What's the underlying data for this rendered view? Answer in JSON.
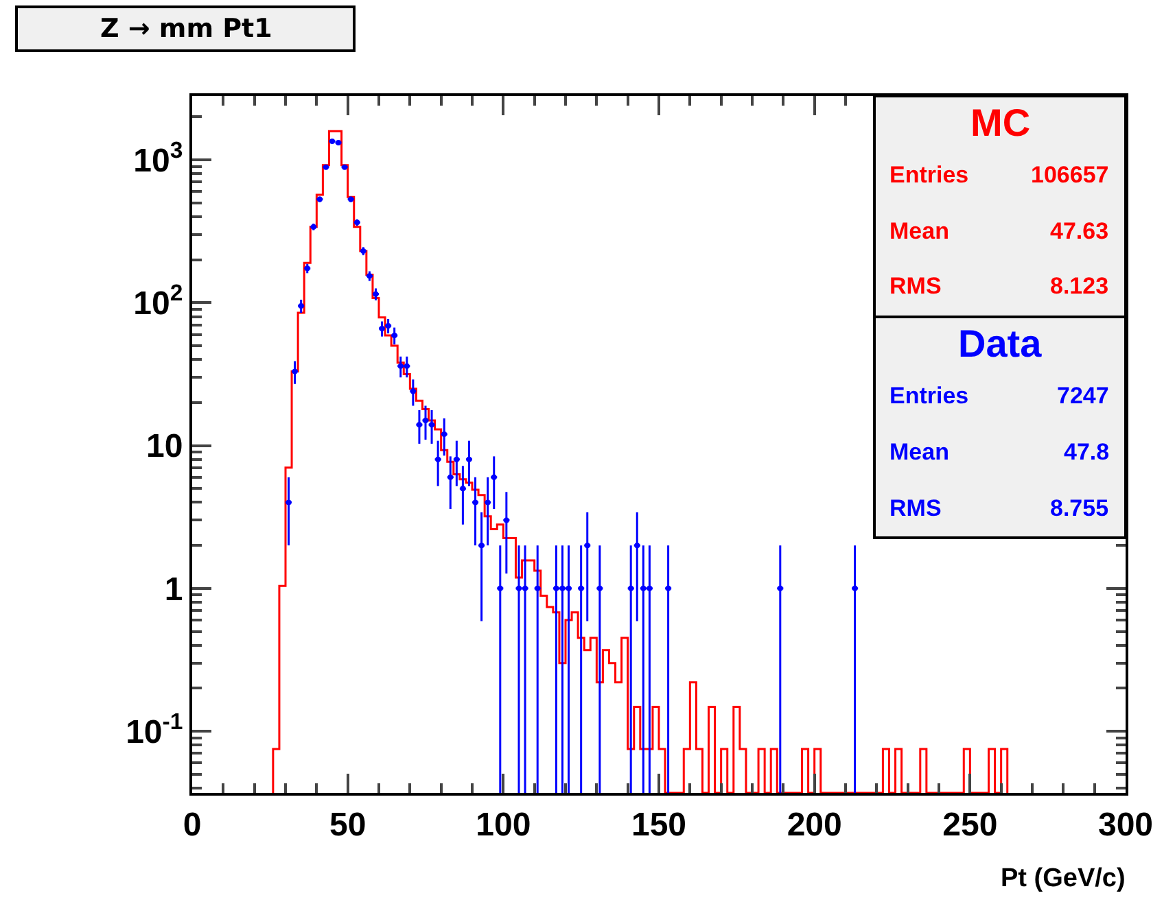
{
  "chart_data": {
    "type": "histogram",
    "title": "Z → mm Pt1",
    "xlabel": "Pt (GeV/c)",
    "xlim": [
      0,
      300
    ],
    "xticks": [
      0,
      50,
      100,
      150,
      200,
      250,
      300
    ],
    "ylim": [
      0.037,
      2800
    ],
    "log": true,
    "yticks": [
      {
        "value": 0.1,
        "label": "10$^{-1}$"
      },
      1,
      10,
      {
        "value": 100,
        "label": "10$^{2}$"
      },
      {
        "value": 1000,
        "label": "10$^{3}$"
      }
    ],
    "series": [
      {
        "name": "MC",
        "color": "#ff0000",
        "bins": [
          26,
          28,
          30,
          32,
          34,
          36,
          38,
          40,
          42,
          44,
          46,
          48,
          50,
          52,
          54,
          56,
          58,
          60,
          62,
          64,
          66,
          68,
          70,
          72,
          74,
          76,
          78,
          80,
          82,
          84,
          86,
          88,
          90,
          92,
          94,
          96,
          98,
          100,
          102,
          104,
          106,
          108,
          110,
          112,
          114,
          116,
          118,
          120,
          122,
          124,
          126,
          128,
          130,
          132,
          134,
          136,
          138,
          140,
          142,
          144,
          146,
          148,
          150,
          152,
          154,
          156,
          158,
          160,
          162,
          164,
          166,
          168,
          170,
          172,
          174,
          176,
          178,
          180,
          182,
          184,
          186,
          188,
          190,
          192,
          194,
          196,
          198,
          200,
          202,
          204,
          206,
          208,
          210,
          212,
          214,
          216,
          218,
          220,
          222,
          224,
          226,
          228,
          230,
          232,
          234,
          236,
          238,
          240,
          242,
          244,
          246,
          248,
          250,
          252,
          254,
          256,
          258,
          260,
          262
        ],
        "values": [
          0.075,
          1.04,
          7.0,
          33,
          85,
          190,
          340,
          570,
          920,
          1590,
          1590,
          920,
          550,
          340,
          230,
          157,
          108,
          79,
          59,
          50,
          38,
          31.6,
          25,
          20.6,
          18,
          15,
          13,
          9.3,
          7.7,
          6.3,
          5.8,
          5.5,
          4.9,
          4.5,
          3.2,
          2.6,
          2.8,
          2.25,
          2.25,
          1.19,
          1.57,
          1.57,
          1.33,
          0.89,
          0.74,
          0.68,
          0.3,
          0.6,
          0.68,
          0.45,
          0.37,
          0.45,
          0.22,
          0.37,
          0.3,
          0.22,
          0.45,
          0.075,
          0.148,
          0.075,
          0.075,
          0.148,
          0.075,
          null,
          null,
          null,
          0.075,
          0.22,
          0.075,
          null,
          0.148,
          null,
          0.075,
          null,
          0.148,
          0.075,
          null,
          null,
          0.075,
          null,
          0.075,
          null,
          null,
          null,
          null,
          0.075,
          null,
          0.075,
          null,
          null,
          null,
          null,
          null,
          null,
          null,
          null,
          null,
          null,
          0.075,
          null,
          0.075,
          null,
          null,
          null,
          0.075,
          null,
          null,
          null,
          null,
          null,
          null,
          0.075,
          null,
          null,
          null,
          0.075,
          null,
          0.075
        ]
      },
      {
        "name": "Data",
        "type": "scatter",
        "color": "#0000ff",
        "x": [
          31,
          33,
          35,
          37,
          39,
          41,
          43,
          45,
          47,
          49,
          51,
          53,
          55,
          57,
          59,
          61,
          63,
          65,
          67,
          69,
          71,
          73,
          75,
          77,
          79,
          81,
          83,
          85,
          87,
          89,
          91,
          93,
          95,
          97,
          99,
          101,
          105,
          107,
          111,
          117,
          119,
          121,
          125,
          127,
          131,
          141,
          143,
          145,
          147,
          153,
          189,
          213
        ],
        "values": [
          4,
          33,
          95,
          174,
          340,
          530,
          890,
          1350,
          1320,
          890,
          530,
          365,
          230,
          154,
          115,
          66,
          69,
          59,
          36,
          36,
          24,
          14,
          15,
          14,
          8,
          12,
          6,
          8,
          5,
          8,
          4,
          2,
          4,
          6,
          1,
          3,
          1,
          1,
          1,
          1,
          1,
          1,
          1,
          2,
          1,
          1,
          2,
          1,
          1,
          1,
          1,
          1
        ],
        "errors": [
          [
            2,
            6
          ],
          [
            27,
            39
          ],
          [
            85,
            105
          ],
          [
            161,
            187
          ],
          [
            322,
            358
          ],
          [
            507,
            553
          ],
          [
            860,
            920
          ],
          [
            1313,
            1387
          ],
          [
            1284,
            1356
          ],
          [
            860,
            920
          ],
          [
            507,
            553
          ],
          [
            346,
            384
          ],
          [
            215,
            245
          ],
          [
            142,
            166
          ],
          [
            104,
            126
          ],
          [
            58,
            74
          ],
          [
            61,
            77
          ],
          [
            51,
            67
          ],
          [
            30,
            42
          ],
          [
            30,
            42
          ],
          [
            19,
            29
          ],
          [
            10.3,
            17.7
          ],
          [
            11,
            19
          ],
          [
            10.3,
            17.7
          ],
          [
            5.2,
            10.8
          ],
          [
            8.5,
            15.5
          ],
          [
            3.6,
            8.4
          ],
          [
            5.2,
            10.8
          ],
          [
            2.8,
            7.2
          ],
          [
            5.2,
            10.8
          ],
          [
            2,
            6
          ],
          [
            0.59,
            3.41
          ],
          [
            2,
            6
          ],
          [
            3.6,
            8.4
          ],
          [
            0.037,
            2
          ],
          [
            1.27,
            4.73
          ],
          [
            0.037,
            2
          ],
          [
            0.037,
            2
          ],
          [
            0.037,
            2
          ],
          [
            0.037,
            2
          ],
          [
            0.037,
            2
          ],
          [
            0.037,
            2
          ],
          [
            0.037,
            2
          ],
          [
            0.59,
            3.41
          ],
          [
            0.037,
            2
          ],
          [
            0.037,
            2
          ],
          [
            0.59,
            3.41
          ],
          [
            0.037,
            2
          ],
          [
            0.037,
            2
          ],
          [
            0.037,
            2
          ],
          [
            0.037,
            2
          ],
          [
            0.037,
            2
          ]
        ],
        "xerrors": [
          1,
          1,
          1,
          1,
          1,
          1,
          1,
          1,
          1,
          1,
          1,
          1,
          1,
          1,
          1,
          1,
          1,
          1,
          1,
          1,
          1,
          1,
          1,
          1,
          1,
          1,
          1,
          1,
          1,
          1,
          1,
          1,
          1,
          1,
          1,
          1,
          1,
          1,
          1,
          1,
          1,
          1,
          1,
          1,
          1,
          1,
          1,
          1,
          1,
          1,
          1,
          1
        ]
      }
    ],
    "annotations": [
      "Entries",
      "106657",
      "Mean",
      "47.63",
      "RMS",
      "8.123",
      "Entries",
      "7247",
      "Mean",
      "47.8",
      "RMS",
      "8.755"
    ]
  }
}
